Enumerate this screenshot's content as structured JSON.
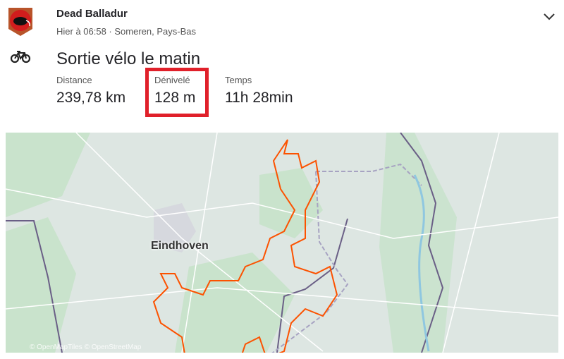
{
  "athlete": {
    "name": "Dead Balladur",
    "meta": "Hier à 06:58 · Someren, Pays-Bas"
  },
  "activity": {
    "title": "Sortie vélo le matin",
    "type_icon": "bike-icon"
  },
  "stats": [
    {
      "label": "Distance",
      "value": "239,78 km"
    },
    {
      "label": "Dénivelé",
      "value": "128 m",
      "highlighted": true
    },
    {
      "label": "Temps",
      "value": "11h 28min"
    }
  ],
  "map": {
    "city": "Eindhoven",
    "attribution": "© OpenMapTiles © OpenStreetMap",
    "route_color": "#fc5200",
    "highlight_color": "#e0202a"
  }
}
